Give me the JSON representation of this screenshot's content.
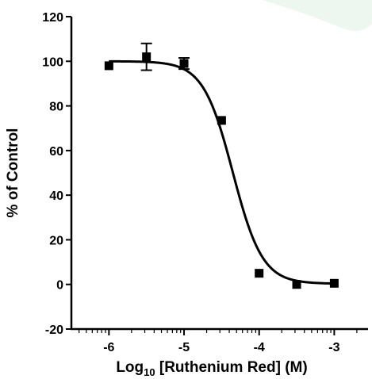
{
  "chart_data": {
    "type": "scatter",
    "title": "",
    "xlabel": {
      "main": "Log",
      "subscript": "10",
      "rest": " [Ruthenium Red] (M)"
    },
    "ylabel": "% of Control",
    "xlim": [
      -6.5,
      -2.55
    ],
    "ylim": [
      -20,
      120
    ],
    "xticks": [
      -6,
      -5,
      -4,
      -3
    ],
    "xtick_labels": [
      "-6",
      "-5",
      "-4",
      "-3"
    ],
    "yticks": [
      -20,
      0,
      20,
      40,
      60,
      80,
      100,
      120
    ],
    "ytick_labels": [
      "-20",
      "0",
      "20",
      "40",
      "60",
      "80",
      "100",
      "120"
    ],
    "grid": false,
    "legend": "none",
    "series": [
      {
        "points": [
          {
            "x": -6.0,
            "y": 98,
            "err": 0
          },
          {
            "x": -5.5,
            "y": 102,
            "err": 6
          },
          {
            "x": -5.0,
            "y": 99,
            "err": 2.5
          },
          {
            "x": -4.5,
            "y": 73.5,
            "err": 0
          },
          {
            "x": -4.0,
            "y": 5,
            "err": 0
          },
          {
            "x": -3.5,
            "y": 0,
            "err": 0
          },
          {
            "x": -3.0,
            "y": 0.5,
            "err": 0
          }
        ],
        "fit": {
          "model": "sigmoidal dose-response",
          "top": 100,
          "bottom": 0.3,
          "log_ic50": -4.35,
          "hill_slope": -2.2
        }
      }
    ],
    "colors": {
      "markers": "#000000",
      "curve": "#000000",
      "background_leaf": "#eef6f0"
    }
  }
}
